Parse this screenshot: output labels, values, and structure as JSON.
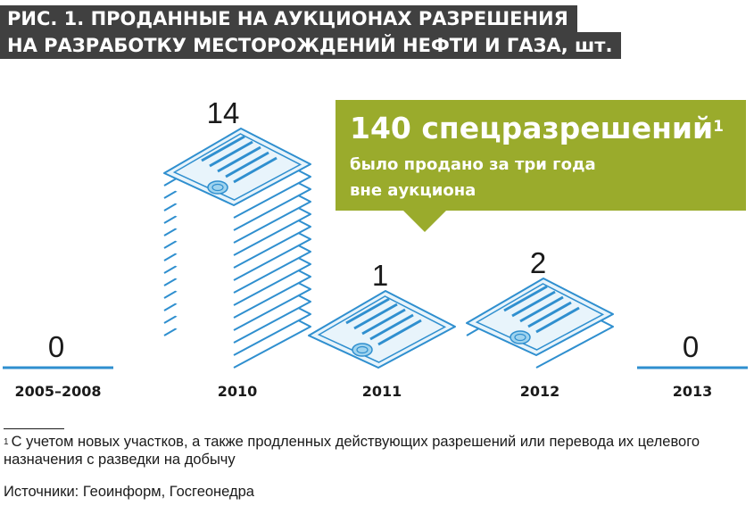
{
  "title": {
    "line1": "РИС. 1. ПРОДАННЫЕ НА АУКЦИОНАХ РАЗРЕШЕНИЯ",
    "line2": "НА РАЗРАБОТКУ МЕСТОРОЖДЕНИЙ НЕФТИ И ГАЗА, шт."
  },
  "callout": {
    "headline": "140 спецразрешений",
    "headline_sup": "1",
    "line2": "было продано за три года",
    "line3": "вне аукциона"
  },
  "footnote": {
    "marker": "1",
    "text": "С учетом новых участков, а также продленных действующих разрешений или перевода их целевого назначения с разведки на добычу"
  },
  "sources": "Источники: Геоинформ, Госгеонедра",
  "colors": {
    "accent_blue": "#2f8fcf",
    "card_fill": "#e8f4fb",
    "seal_fill": "#9fd3ee",
    "title_bar": "#404040",
    "callout_green": "#9aab2c"
  },
  "chart_data": {
    "type": "bar",
    "categories": [
      "2005–2008",
      "2010",
      "2011",
      "2012",
      "2013"
    ],
    "values": [
      0,
      14,
      1,
      2,
      0
    ],
    "value_labels": [
      "0",
      "14",
      "1",
      "2",
      "0"
    ],
    "mark_style": "stacked document icons"
  }
}
